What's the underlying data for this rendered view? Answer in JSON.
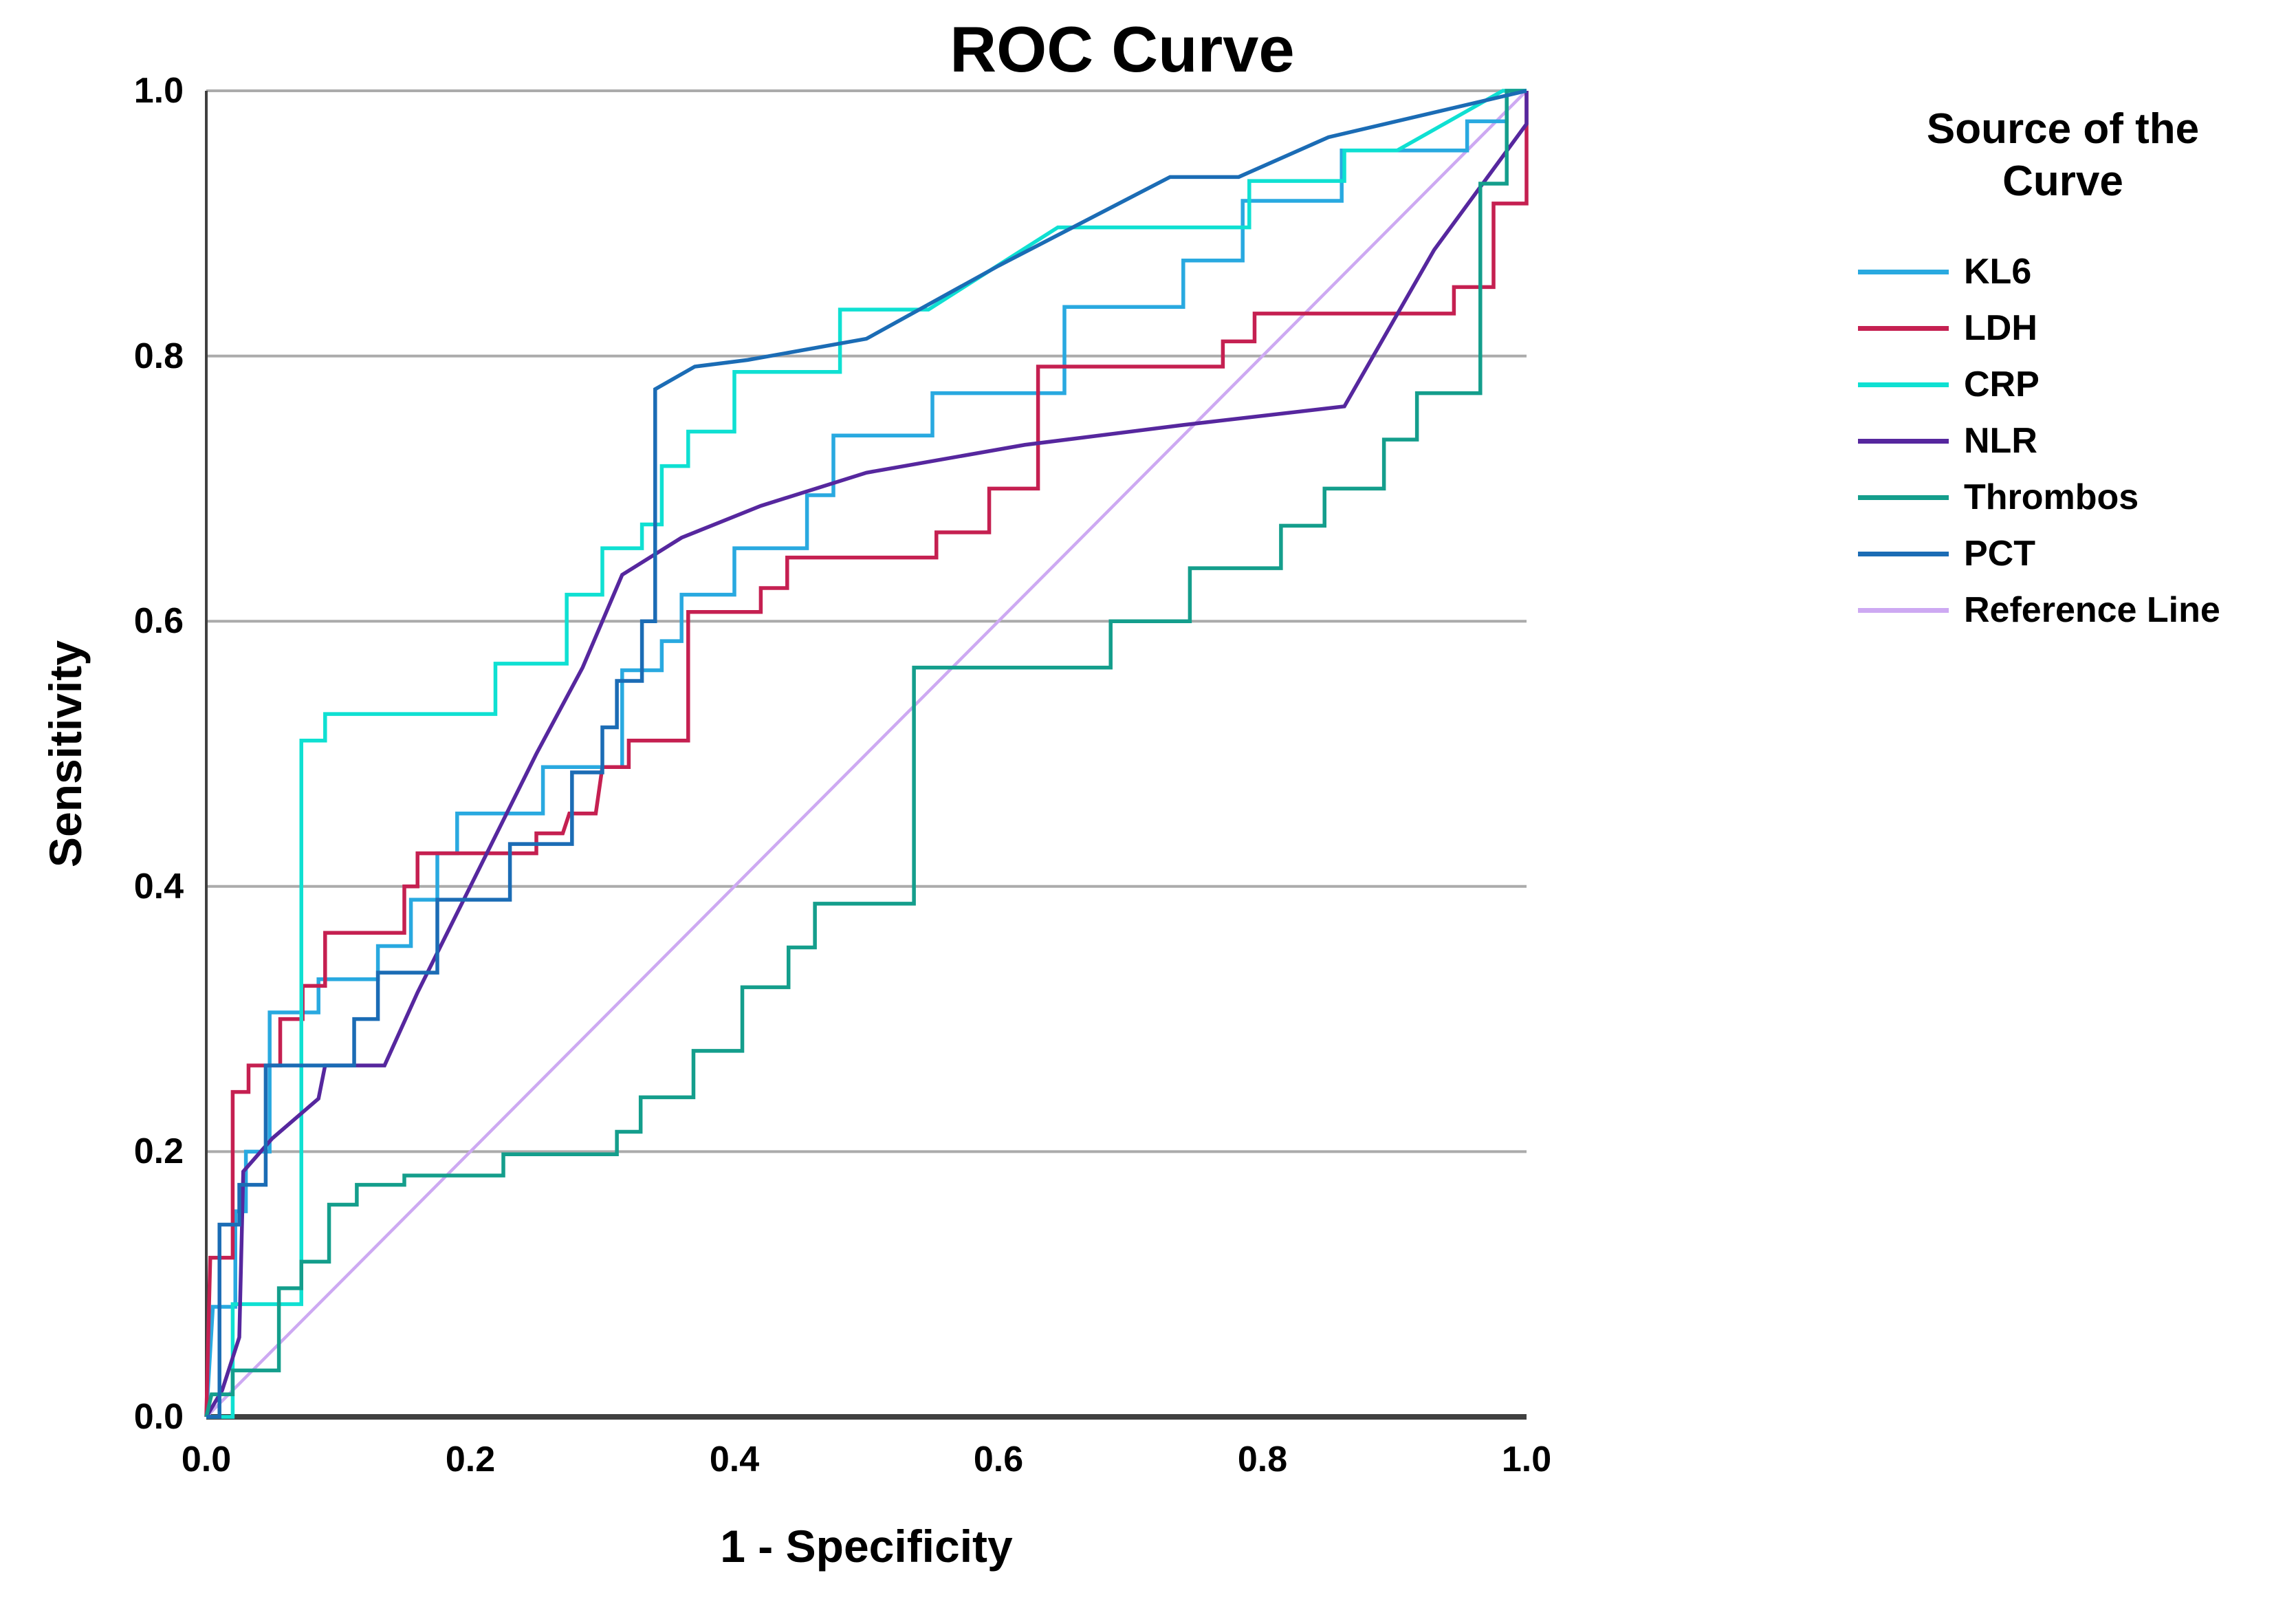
{
  "title": "ROC Curve",
  "axes": {
    "x_label": "1 - Specificity",
    "y_label": "Sensitivity",
    "x_ticks": [
      "0.0",
      "0.2",
      "0.4",
      "0.6",
      "0.8",
      "1.0"
    ],
    "y_ticks": [
      "1.0",
      "0.8",
      "0.6",
      "0.4",
      "0.2",
      "0.0"
    ]
  },
  "legend": {
    "title_line1": "Source of the",
    "title_line2": "Curve",
    "entries": [
      "KL6",
      "LDH",
      "CRP",
      "NLR",
      "Thrombos",
      "PCT",
      "Reference Line"
    ]
  },
  "colors": {
    "grid": "#ABABAB",
    "axis": "#404040",
    "kl6": "#29A9E0",
    "ldh": "#C52051",
    "crp": "#0FE0D2",
    "nlr": "#56279E",
    "thrombos": "#149E8C",
    "pct": "#1B6CB5",
    "reference": "#CDA9F2"
  },
  "chart_data": {
    "type": "line",
    "title": "ROC Curve",
    "xlabel": "1 - Specificity",
    "ylabel": "Sensitivity",
    "xlim": [
      0,
      1
    ],
    "ylim": [
      0,
      1
    ],
    "x_tick_values": [
      0.0,
      0.2,
      0.4,
      0.6,
      0.8,
      1.0
    ],
    "y_tick_values": [
      0.0,
      0.2,
      0.4,
      0.6,
      0.8,
      1.0
    ],
    "gridlines_y": [
      0.2,
      0.4,
      0.6,
      0.8,
      1.0
    ],
    "grid": "horizontal-only",
    "legend_position": "right",
    "series": [
      {
        "name": "KL6",
        "color": "#29A9E0",
        "width": 5.5,
        "z": 1,
        "points": [
          [
            0,
            0
          ],
          [
            0.005,
            0.083
          ],
          [
            0.022,
            0.083
          ],
          [
            0.022,
            0.155
          ],
          [
            0.03,
            0.155
          ],
          [
            0.03,
            0.2
          ],
          [
            0.048,
            0.2
          ],
          [
            0.048,
            0.305
          ],
          [
            0.085,
            0.305
          ],
          [
            0.085,
            0.33
          ],
          [
            0.13,
            0.33
          ],
          [
            0.13,
            0.355
          ],
          [
            0.155,
            0.355
          ],
          [
            0.155,
            0.39
          ],
          [
            0.175,
            0.39
          ],
          [
            0.175,
            0.425
          ],
          [
            0.19,
            0.425
          ],
          [
            0.19,
            0.455
          ],
          [
            0.255,
            0.455
          ],
          [
            0.255,
            0.49
          ],
          [
            0.315,
            0.49
          ],
          [
            0.315,
            0.563
          ],
          [
            0.345,
            0.563
          ],
          [
            0.345,
            0.585
          ],
          [
            0.36,
            0.585
          ],
          [
            0.36,
            0.62
          ],
          [
            0.4,
            0.62
          ],
          [
            0.4,
            0.655
          ],
          [
            0.455,
            0.655
          ],
          [
            0.455,
            0.695
          ],
          [
            0.475,
            0.695
          ],
          [
            0.475,
            0.74
          ],
          [
            0.55,
            0.74
          ],
          [
            0.55,
            0.772
          ],
          [
            0.65,
            0.772
          ],
          [
            0.65,
            0.837
          ],
          [
            0.74,
            0.837
          ],
          [
            0.74,
            0.872
          ],
          [
            0.785,
            0.872
          ],
          [
            0.785,
            0.917
          ],
          [
            0.86,
            0.917
          ],
          [
            0.86,
            0.955
          ],
          [
            0.955,
            0.955
          ],
          [
            0.955,
            0.977
          ],
          [
            0.985,
            0.977
          ],
          [
            0.985,
            1
          ],
          [
            1,
            1
          ]
        ]
      },
      {
        "name": "LDH",
        "color": "#C52051",
        "width": 5.5,
        "z": 2,
        "points": [
          [
            0,
            0
          ],
          [
            0.003,
            0.12
          ],
          [
            0.02,
            0.12
          ],
          [
            0.02,
            0.245
          ],
          [
            0.032,
            0.245
          ],
          [
            0.032,
            0.265
          ],
          [
            0.056,
            0.265
          ],
          [
            0.056,
            0.3
          ],
          [
            0.073,
            0.3
          ],
          [
            0.073,
            0.325
          ],
          [
            0.09,
            0.325
          ],
          [
            0.09,
            0.365
          ],
          [
            0.15,
            0.365
          ],
          [
            0.15,
            0.4
          ],
          [
            0.16,
            0.4
          ],
          [
            0.16,
            0.425
          ],
          [
            0.25,
            0.425
          ],
          [
            0.25,
            0.44
          ],
          [
            0.27,
            0.44
          ],
          [
            0.275,
            0.455
          ],
          [
            0.295,
            0.455
          ],
          [
            0.3,
            0.49
          ],
          [
            0.32,
            0.49
          ],
          [
            0.32,
            0.51
          ],
          [
            0.365,
            0.51
          ],
          [
            0.365,
            0.607
          ],
          [
            0.42,
            0.607
          ],
          [
            0.42,
            0.625
          ],
          [
            0.44,
            0.625
          ],
          [
            0.44,
            0.648
          ],
          [
            0.553,
            0.648
          ],
          [
            0.553,
            0.667
          ],
          [
            0.593,
            0.667
          ],
          [
            0.593,
            0.7
          ],
          [
            0.63,
            0.7
          ],
          [
            0.63,
            0.792
          ],
          [
            0.77,
            0.792
          ],
          [
            0.77,
            0.811
          ],
          [
            0.794,
            0.811
          ],
          [
            0.794,
            0.832
          ],
          [
            0.945,
            0.832
          ],
          [
            0.945,
            0.852
          ],
          [
            0.975,
            0.852
          ],
          [
            0.975,
            0.915
          ],
          [
            1,
            0.915
          ],
          [
            1,
            1
          ]
        ]
      },
      {
        "name": "CRP",
        "color": "#0FE0D2",
        "width": 5.5,
        "z": 3,
        "points": [
          [
            0,
            0
          ],
          [
            0.02,
            0
          ],
          [
            0.02,
            0.085
          ],
          [
            0.072,
            0.085
          ],
          [
            0.072,
            0.51
          ],
          [
            0.09,
            0.51
          ],
          [
            0.09,
            0.53
          ],
          [
            0.219,
            0.53
          ],
          [
            0.219,
            0.568
          ],
          [
            0.273,
            0.568
          ],
          [
            0.273,
            0.62
          ],
          [
            0.3,
            0.62
          ],
          [
            0.3,
            0.655
          ],
          [
            0.33,
            0.655
          ],
          [
            0.33,
            0.673
          ],
          [
            0.345,
            0.673
          ],
          [
            0.345,
            0.717
          ],
          [
            0.365,
            0.717
          ],
          [
            0.365,
            0.743
          ],
          [
            0.4,
            0.743
          ],
          [
            0.4,
            0.788
          ],
          [
            0.48,
            0.788
          ],
          [
            0.48,
            0.835
          ],
          [
            0.547,
            0.835
          ],
          [
            0.645,
            0.897
          ],
          [
            0.79,
            0.897
          ],
          [
            0.79,
            0.932
          ],
          [
            0.862,
            0.932
          ],
          [
            0.862,
            0.955
          ],
          [
            0.902,
            0.955
          ],
          [
            0.982,
            1
          ],
          [
            1,
            1
          ]
        ]
      },
      {
        "name": "NLR",
        "color": "#56279E",
        "width": 5.5,
        "z": 4,
        "points": [
          [
            0,
            0
          ],
          [
            0.012,
            0.02
          ],
          [
            0.025,
            0.06
          ],
          [
            0.028,
            0.185
          ],
          [
            0.05,
            0.21
          ],
          [
            0.085,
            0.24
          ],
          [
            0.09,
            0.265
          ],
          [
            0.135,
            0.265
          ],
          [
            0.16,
            0.32
          ],
          [
            0.2,
            0.4
          ],
          [
            0.25,
            0.5
          ],
          [
            0.285,
            0.565
          ],
          [
            0.315,
            0.635
          ],
          [
            0.36,
            0.663
          ],
          [
            0.42,
            0.687
          ],
          [
            0.5,
            0.712
          ],
          [
            0.62,
            0.733
          ],
          [
            0.74,
            0.748
          ],
          [
            0.862,
            0.762
          ],
          [
            0.93,
            0.88
          ],
          [
            1,
            0.975
          ],
          [
            1,
            1
          ]
        ]
      },
      {
        "name": "Thrombos",
        "color": "#149E8C",
        "width": 5.5,
        "z": 5,
        "points": [
          [
            0,
            0
          ],
          [
            0.004,
            0.017
          ],
          [
            0.02,
            0.017
          ],
          [
            0.02,
            0.035
          ],
          [
            0.055,
            0.035
          ],
          [
            0.055,
            0.097
          ],
          [
            0.072,
            0.097
          ],
          [
            0.072,
            0.117
          ],
          [
            0.093,
            0.117
          ],
          [
            0.093,
            0.16
          ],
          [
            0.114,
            0.16
          ],
          [
            0.114,
            0.175
          ],
          [
            0.15,
            0.175
          ],
          [
            0.15,
            0.182
          ],
          [
            0.225,
            0.182
          ],
          [
            0.225,
            0.198
          ],
          [
            0.311,
            0.198
          ],
          [
            0.311,
            0.215
          ],
          [
            0.329,
            0.215
          ],
          [
            0.329,
            0.241
          ],
          [
            0.369,
            0.241
          ],
          [
            0.369,
            0.276
          ],
          [
            0.406,
            0.276
          ],
          [
            0.406,
            0.324
          ],
          [
            0.441,
            0.324
          ],
          [
            0.441,
            0.354
          ],
          [
            0.461,
            0.354
          ],
          [
            0.461,
            0.387
          ],
          [
            0.536,
            0.387
          ],
          [
            0.536,
            0.565
          ],
          [
            0.685,
            0.565
          ],
          [
            0.685,
            0.6
          ],
          [
            0.745,
            0.6
          ],
          [
            0.745,
            0.64
          ],
          [
            0.814,
            0.64
          ],
          [
            0.814,
            0.672
          ],
          [
            0.847,
            0.672
          ],
          [
            0.847,
            0.7
          ],
          [
            0.892,
            0.7
          ],
          [
            0.892,
            0.737
          ],
          [
            0.917,
            0.737
          ],
          [
            0.917,
            0.772
          ],
          [
            0.965,
            0.772
          ],
          [
            0.965,
            0.93
          ],
          [
            0.985,
            0.93
          ],
          [
            0.985,
            1
          ],
          [
            1,
            1
          ]
        ]
      },
      {
        "name": "PCT",
        "color": "#1B6CB5",
        "width": 5.5,
        "z": 6,
        "points": [
          [
            0,
            0
          ],
          [
            0.01,
            0
          ],
          [
            0.01,
            0.145
          ],
          [
            0.025,
            0.145
          ],
          [
            0.025,
            0.175
          ],
          [
            0.045,
            0.175
          ],
          [
            0.045,
            0.265
          ],
          [
            0.112,
            0.265
          ],
          [
            0.112,
            0.3
          ],
          [
            0.13,
            0.3
          ],
          [
            0.13,
            0.335
          ],
          [
            0.175,
            0.335
          ],
          [
            0.175,
            0.39
          ],
          [
            0.23,
            0.39
          ],
          [
            0.23,
            0.432
          ],
          [
            0.277,
            0.432
          ],
          [
            0.277,
            0.486
          ],
          [
            0.3,
            0.486
          ],
          [
            0.3,
            0.52
          ],
          [
            0.311,
            0.52
          ],
          [
            0.311,
            0.555
          ],
          [
            0.33,
            0.555
          ],
          [
            0.33,
            0.6
          ],
          [
            0.34,
            0.6
          ],
          [
            0.34,
            0.775
          ],
          [
            0.37,
            0.792
          ],
          [
            0.41,
            0.797
          ],
          [
            0.5,
            0.813
          ],
          [
            0.6,
            0.868
          ],
          [
            0.73,
            0.935
          ],
          [
            0.782,
            0.935
          ],
          [
            0.85,
            0.965
          ],
          [
            1,
            1
          ]
        ]
      },
      {
        "name": "Reference Line",
        "color": "#CDA9F2",
        "width": 4.5,
        "z": 0,
        "points": [
          [
            0,
            0
          ],
          [
            1,
            1
          ]
        ]
      }
    ]
  }
}
